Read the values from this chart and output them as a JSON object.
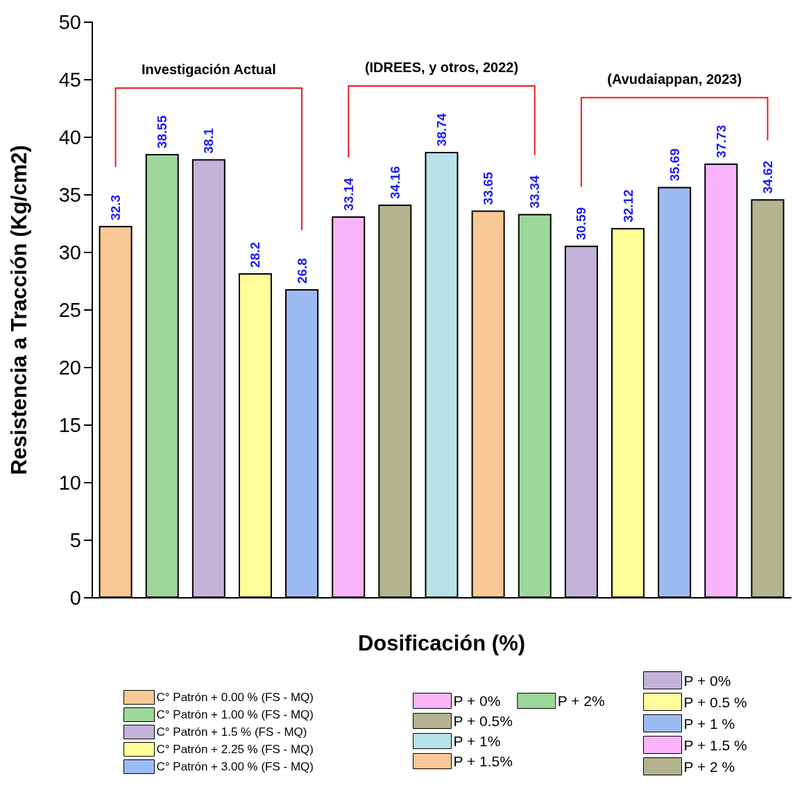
{
  "chart_data": {
    "type": "bar",
    "xlabel": "Dosificación (%)",
    "ylabel": "Resistencia a Tracción (Kg/cm2)",
    "categories": [
      null,
      null,
      null,
      null,
      null,
      null,
      null,
      null,
      null,
      null,
      null,
      null,
      null,
      null,
      null
    ],
    "ylim": [
      0,
      50
    ],
    "yticks": [
      0,
      5,
      10,
      15,
      20,
      25,
      30,
      35,
      40,
      45,
      50
    ],
    "grid": false,
    "stacked": true,
    "legend": "bottom",
    "data_labels": true,
    "annotations": [
      "Investigación Actual",
      "(IDREES, y otros, 2022)",
      "(Avudaiappan, 2023)"
    ],
    "series": [
      {
        "name": "C° Patrón + 0.00 % (FS - MQ)",
        "color": "#f9c896",
        "values": [
          32.3,
          null,
          null,
          null,
          null,
          null,
          null,
          null,
          null,
          null,
          null,
          null,
          null,
          null,
          null
        ]
      },
      {
        "name": "C° Patrón + 1.00 % (FS - MQ)",
        "color": "#9dd89a",
        "values": [
          null,
          38.55,
          null,
          null,
          null,
          null,
          null,
          null,
          null,
          null,
          null,
          null,
          null,
          null,
          null
        ]
      },
      {
        "name": "C° Patrón + 1.5 % (FS - MQ)",
        "color": "#c3b3d8",
        "values": [
          null,
          null,
          38.1,
          null,
          null,
          null,
          null,
          null,
          null,
          null,
          null,
          null,
          null,
          null,
          null
        ]
      },
      {
        "name": "C° Patrón + 2.25 % (FS - MQ)",
        "color": "#fffd98",
        "values": [
          null,
          null,
          null,
          28.2,
          null,
          null,
          null,
          null,
          null,
          null,
          null,
          null,
          null,
          null,
          null
        ]
      },
      {
        "name": "C° Patrón + 3.00 % (FS - MQ)",
        "color": "#9dbbf3",
        "values": [
          null,
          null,
          null,
          null,
          26.8,
          null,
          null,
          null,
          null,
          null,
          null,
          null,
          null,
          null,
          null
        ]
      },
      {
        "name": "P + 0%",
        "color": "#fbb3f9",
        "values": [
          null,
          null,
          null,
          null,
          null,
          33.14,
          null,
          null,
          null,
          null,
          null,
          null,
          null,
          null,
          null
        ]
      },
      {
        "name": "P + 0.5%",
        "color": "#b3b38f",
        "values": [
          null,
          null,
          null,
          null,
          null,
          null,
          34.16,
          null,
          null,
          null,
          null,
          null,
          null,
          null,
          null
        ]
      },
      {
        "name": "P + 1%",
        "color": "#b6e2e8",
        "values": [
          null,
          null,
          null,
          null,
          null,
          null,
          null,
          38.74,
          null,
          null,
          null,
          null,
          null,
          null,
          null
        ]
      },
      {
        "name": "P + 1.5%",
        "color": "#f9c896",
        "values": [
          null,
          null,
          null,
          null,
          null,
          null,
          null,
          null,
          33.65,
          null,
          null,
          null,
          null,
          null,
          null
        ]
      },
      {
        "name": "P + 2%",
        "color": "#9dd89a",
        "values": [
          null,
          null,
          null,
          null,
          null,
          null,
          null,
          null,
          null,
          33.34,
          null,
          null,
          null,
          null,
          null
        ]
      },
      {
        "name": "P + 0%",
        "color": "#c3b3d8",
        "values": [
          null,
          null,
          null,
          null,
          null,
          null,
          null,
          null,
          null,
          null,
          30.59,
          null,
          null,
          null,
          null
        ]
      },
      {
        "name": "P + 0.5 %",
        "color": "#fffd98",
        "values": [
          null,
          null,
          null,
          null,
          null,
          null,
          null,
          null,
          null,
          null,
          null,
          32.12,
          null,
          null,
          null
        ]
      },
      {
        "name": "P + 1 %",
        "color": "#9dbbf3",
        "values": [
          null,
          null,
          null,
          null,
          null,
          null,
          null,
          null,
          null,
          null,
          null,
          null,
          35.69,
          null,
          null
        ]
      },
      {
        "name": "P + 1.5 %",
        "color": "#fbb3f9",
        "values": [
          null,
          null,
          null,
          null,
          null,
          null,
          null,
          null,
          null,
          null,
          null,
          null,
          null,
          37.73,
          null
        ]
      },
      {
        "name": "P + 2 %",
        "color": "#b3b38f",
        "values": [
          null,
          null,
          null,
          null,
          null,
          null,
          null,
          null,
          null,
          null,
          null,
          null,
          null,
          null,
          34.62
        ]
      }
    ]
  }
}
